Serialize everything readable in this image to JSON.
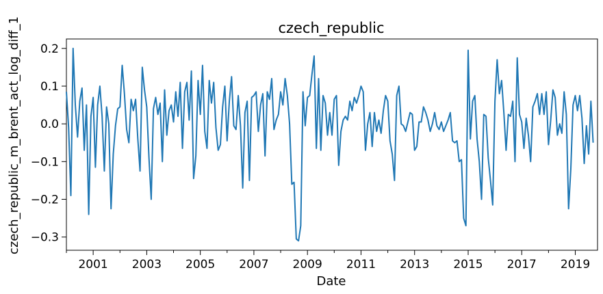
{
  "chart_data": {
    "type": "line",
    "title": "czech_republic",
    "xlabel": "Date",
    "ylabel": "czech_republic_m_brent_act_log_diff_1",
    "grid": false,
    "legend": "none",
    "xlim": [
      2000.0,
      2019.83
    ],
    "ylim": [
      -0.335,
      0.225
    ],
    "x_ticks": [
      2001,
      2003,
      2005,
      2007,
      2009,
      2011,
      2013,
      2015,
      2017,
      2019
    ],
    "x_tick_labels": [
      "2001",
      "2003",
      "2005",
      "2007",
      "2009",
      "2011",
      "2013",
      "2015",
      "2017",
      "2019"
    ],
    "y_ticks": [
      -0.3,
      -0.2,
      -0.1,
      0.0,
      0.1,
      0.2
    ],
    "y_tick_labels": [
      "−0.3",
      "−0.2",
      "−0.1",
      "0.0",
      "0.1",
      "0.2"
    ],
    "series": [
      {
        "color": "#1f77b4",
        "x_start": 2000.0,
        "x_step": 0.08333,
        "values": [
          0.085,
          -0.01,
          -0.19,
          0.2,
          0.05,
          -0.035,
          0.06,
          0.095,
          -0.07,
          0.05,
          -0.24,
          0.02,
          0.07,
          -0.115,
          0.05,
          0.1,
          0.02,
          -0.125,
          0.045,
          0.0,
          -0.225,
          -0.08,
          -0.005,
          0.04,
          0.045,
          0.155,
          0.08,
          -0.015,
          -0.05,
          0.065,
          0.035,
          0.065,
          -0.04,
          -0.125,
          0.15,
          0.09,
          0.045,
          -0.09,
          -0.2,
          0.04,
          0.07,
          0.025,
          0.055,
          -0.1,
          0.09,
          -0.03,
          0.035,
          0.05,
          0.005,
          0.085,
          0.02,
          0.11,
          -0.065,
          0.085,
          0.11,
          0.01,
          0.14,
          -0.145,
          -0.085,
          0.115,
          0.025,
          0.155,
          -0.02,
          -0.065,
          0.115,
          0.055,
          0.11,
          -0.01,
          -0.07,
          -0.055,
          0.045,
          0.1,
          -0.045,
          0.06,
          0.125,
          -0.005,
          -0.015,
          0.075,
          -0.005,
          -0.17,
          0.03,
          0.06,
          -0.15,
          0.07,
          0.075,
          0.085,
          -0.02,
          0.05,
          0.08,
          -0.085,
          0.085,
          0.065,
          0.12,
          -0.015,
          0.01,
          0.025,
          0.085,
          0.05,
          0.12,
          0.075,
          0.0,
          -0.16,
          -0.155,
          -0.305,
          -0.31,
          -0.27,
          0.085,
          -0.005,
          0.07,
          0.075,
          0.13,
          0.18,
          -0.065,
          0.12,
          -0.07,
          0.075,
          0.055,
          -0.03,
          0.03,
          -0.03,
          0.065,
          0.075,
          -0.11,
          -0.02,
          0.01,
          0.02,
          0.01,
          0.06,
          0.035,
          0.07,
          0.055,
          0.075,
          0.1,
          0.085,
          -0.07,
          0.0,
          0.03,
          -0.06,
          0.03,
          -0.02,
          0.01,
          -0.025,
          0.035,
          0.075,
          0.06,
          -0.045,
          -0.08,
          -0.15,
          0.075,
          0.1,
          0.0,
          -0.005,
          -0.02,
          0.005,
          0.03,
          0.025,
          -0.07,
          -0.06,
          0.005,
          0.005,
          0.045,
          0.03,
          0.01,
          -0.02,
          0.0,
          0.03,
          -0.005,
          -0.015,
          0.005,
          -0.02,
          -0.005,
          0.01,
          0.03,
          -0.045,
          -0.05,
          -0.045,
          -0.1,
          -0.095,
          -0.25,
          -0.27,
          0.195,
          -0.04,
          0.06,
          0.075,
          -0.04,
          -0.1,
          -0.2,
          0.025,
          0.02,
          -0.09,
          -0.15,
          -0.215,
          0.06,
          0.17,
          0.08,
          0.115,
          0.03,
          -0.07,
          0.025,
          0.02,
          0.06,
          -0.1,
          0.175,
          0.025,
          0.005,
          -0.065,
          0.015,
          -0.03,
          -0.1,
          0.045,
          0.06,
          0.08,
          0.025,
          0.08,
          0.025,
          0.085,
          -0.055,
          0.01,
          0.09,
          0.07,
          -0.03,
          0.0,
          -0.025,
          0.085,
          0.025,
          -0.225,
          -0.12,
          0.05,
          0.075,
          0.035,
          0.075,
          0.015,
          -0.105,
          -0.005,
          -0.08,
          0.06,
          -0.05
        ]
      }
    ]
  }
}
